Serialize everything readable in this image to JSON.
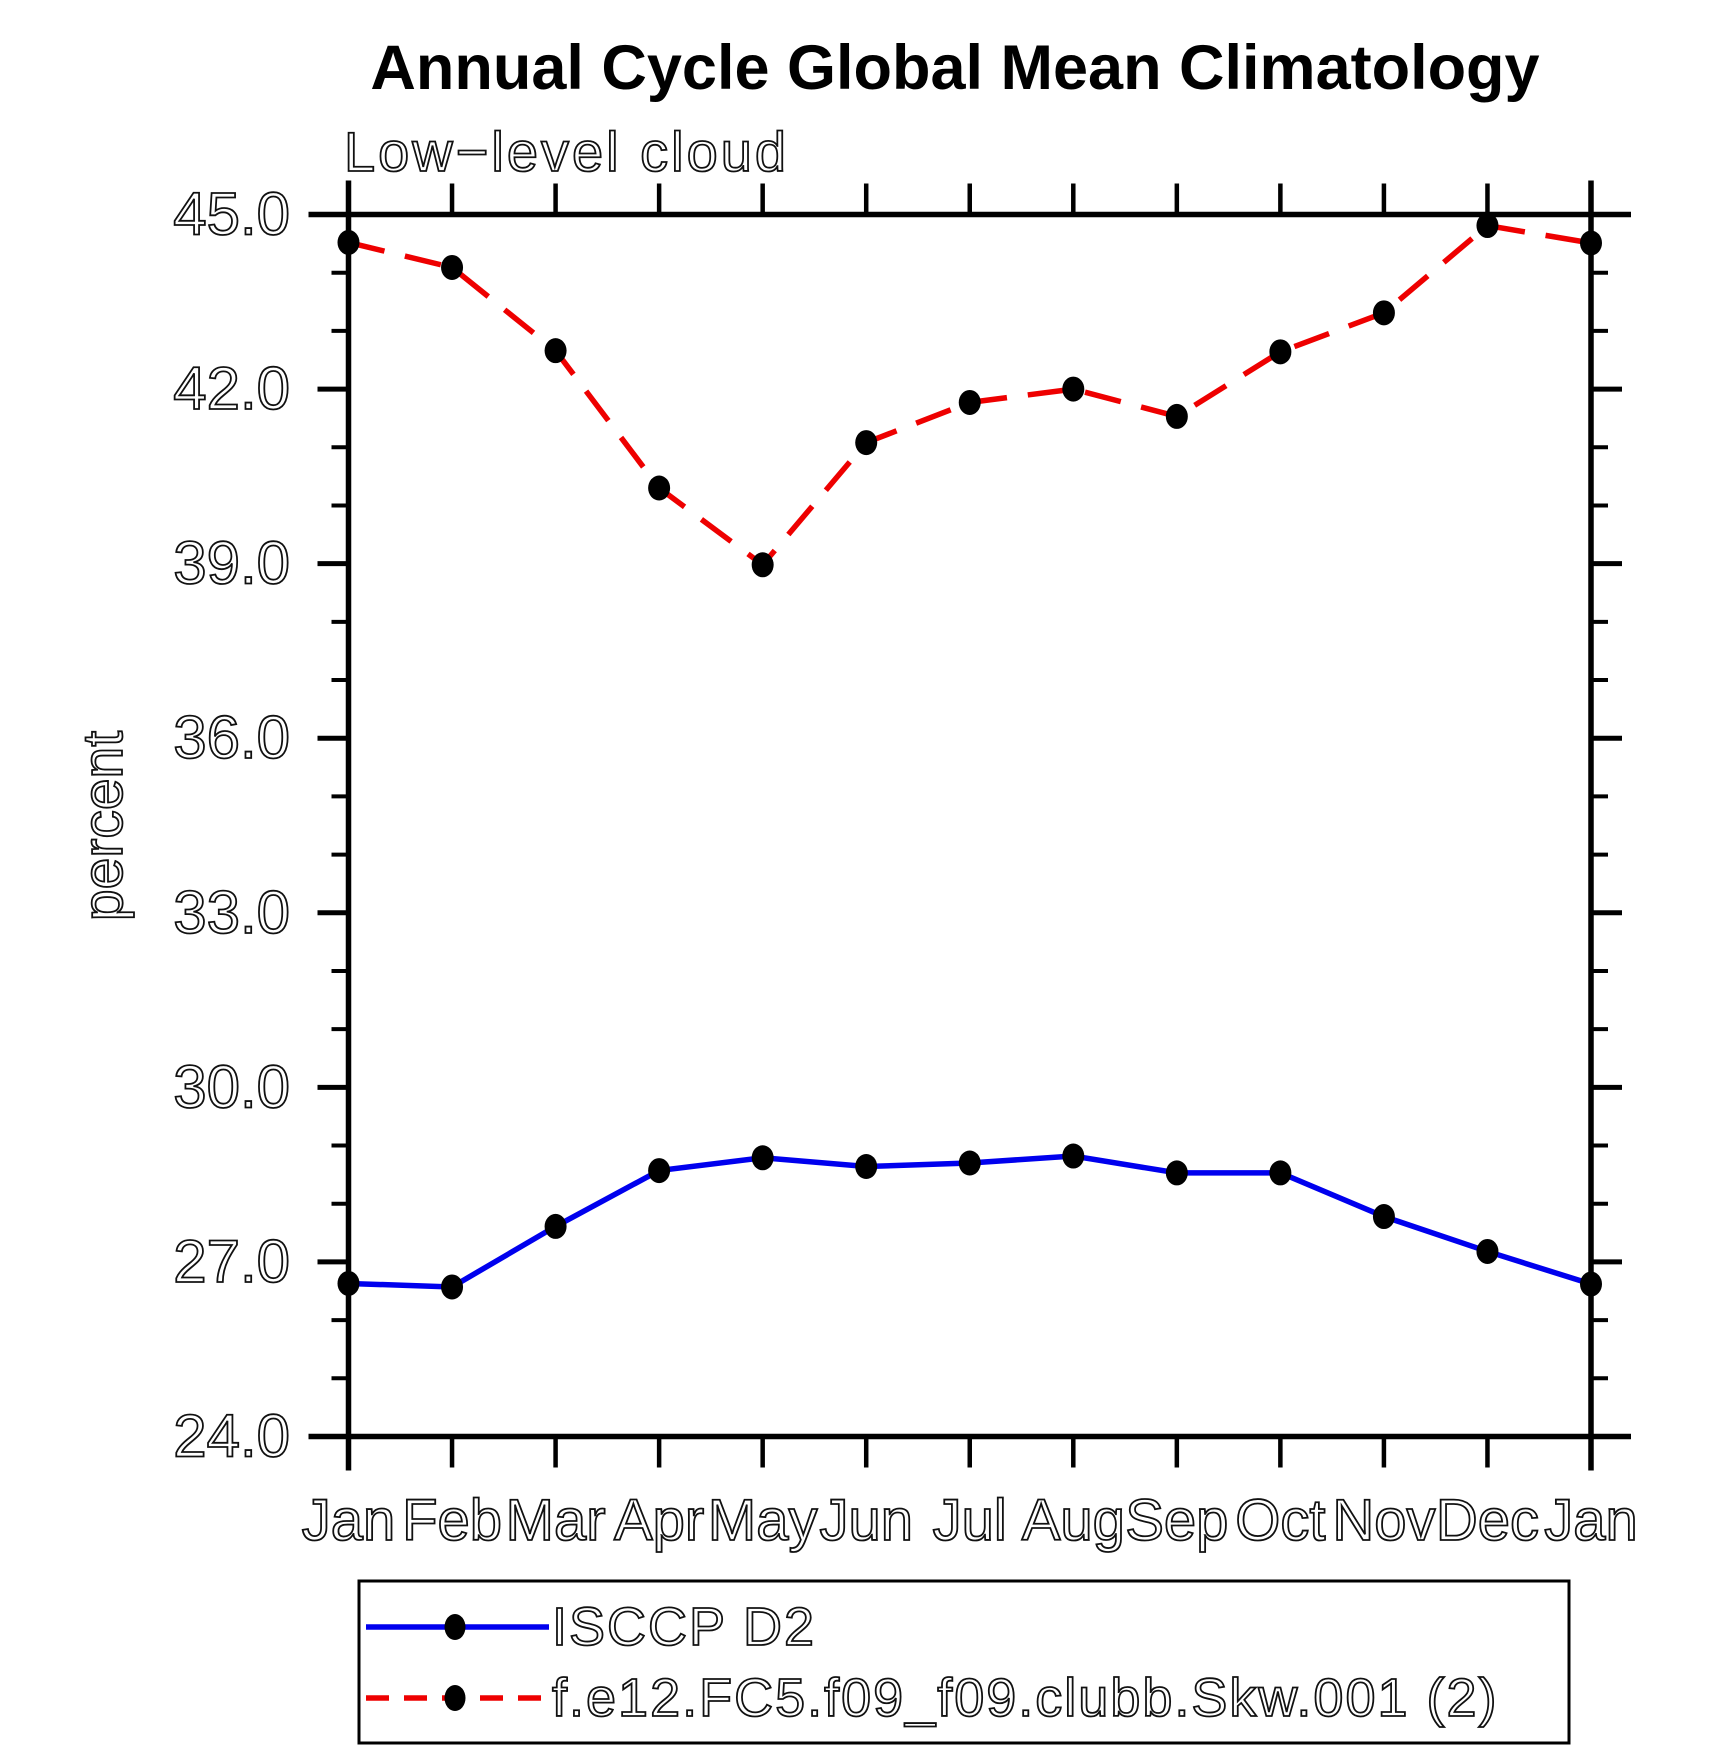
{
  "title": "Annual Cycle Global Mean Climatology",
  "subtitle": "Low−level cloud",
  "chart_data": {
    "type": "line",
    "categories": [
      "Jan",
      "Feb",
      "Mar",
      "Apr",
      "May",
      "Jun",
      "Jul",
      "Aug",
      "Sep",
      "Oct",
      "Nov",
      "Dec",
      "Jan"
    ],
    "xlabel": "",
    "ylabel": "percent",
    "ylim": [
      24.0,
      45.0
    ],
    "ytick_step": 3.0,
    "ytick_minor_step": 1.0,
    "ytick_labels": [
      "24.0",
      "27.0",
      "30.0",
      "33.0",
      "36.0",
      "39.0",
      "42.0",
      "45.0"
    ],
    "grid": false,
    "legend_position": "bottom-left-box",
    "marker": "filled-circle",
    "marker_color": "#000000",
    "axis_color": "#000000",
    "series": [
      {
        "name": "ISCCP D2",
        "color": "#0000ee",
        "line_style": "solid",
        "values": [
          26.63,
          26.57,
          27.61,
          28.57,
          28.79,
          28.64,
          28.7,
          28.82,
          28.53,
          28.53,
          27.78,
          27.18,
          26.62
        ]
      },
      {
        "name": "f.e12.FC5.f09_f09.clubb.Skw.001 (2)",
        "color": "#ee0000",
        "line_style": "dashed",
        "values": [
          44.52,
          44.09,
          42.66,
          40.3,
          38.98,
          41.08,
          41.77,
          42.0,
          41.53,
          42.64,
          43.31,
          44.81,
          44.51
        ]
      }
    ]
  }
}
